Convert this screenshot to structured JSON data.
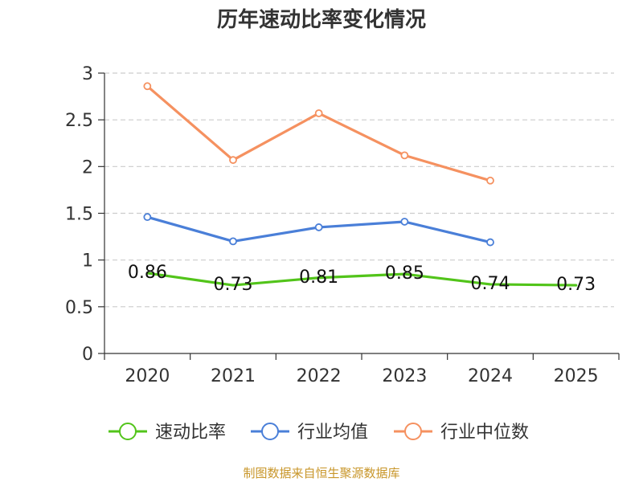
{
  "chart_data": {
    "type": "line",
    "title": "历年速动比率变化情况",
    "categories": [
      "2020",
      "2021",
      "2022",
      "2023",
      "2024",
      "2025"
    ],
    "ylim": [
      0,
      3
    ],
    "yticks": [
      "0",
      "0.5",
      "1",
      "1.5",
      "2",
      "2.5",
      "3"
    ],
    "grid": true,
    "legend_position": "bottom",
    "series": [
      {
        "name": "速动比率",
        "color": "#52c41a",
        "values": [
          0.86,
          0.73,
          0.81,
          0.85,
          0.74,
          0.73
        ],
        "labels": [
          "0.86",
          "0.73",
          "0.81",
          "0.85",
          "0.74",
          "0.73"
        ],
        "marker": false
      },
      {
        "name": "行业均值",
        "color": "#4a7fd8",
        "values": [
          1.46,
          1.2,
          1.35,
          1.41,
          1.19,
          null
        ],
        "marker": true
      },
      {
        "name": "行业中位数",
        "color": "#f59160",
        "values": [
          2.86,
          2.07,
          2.57,
          2.12,
          1.85,
          null
        ],
        "marker": true
      }
    ]
  },
  "source": "制图数据来自恒生聚源数据库"
}
